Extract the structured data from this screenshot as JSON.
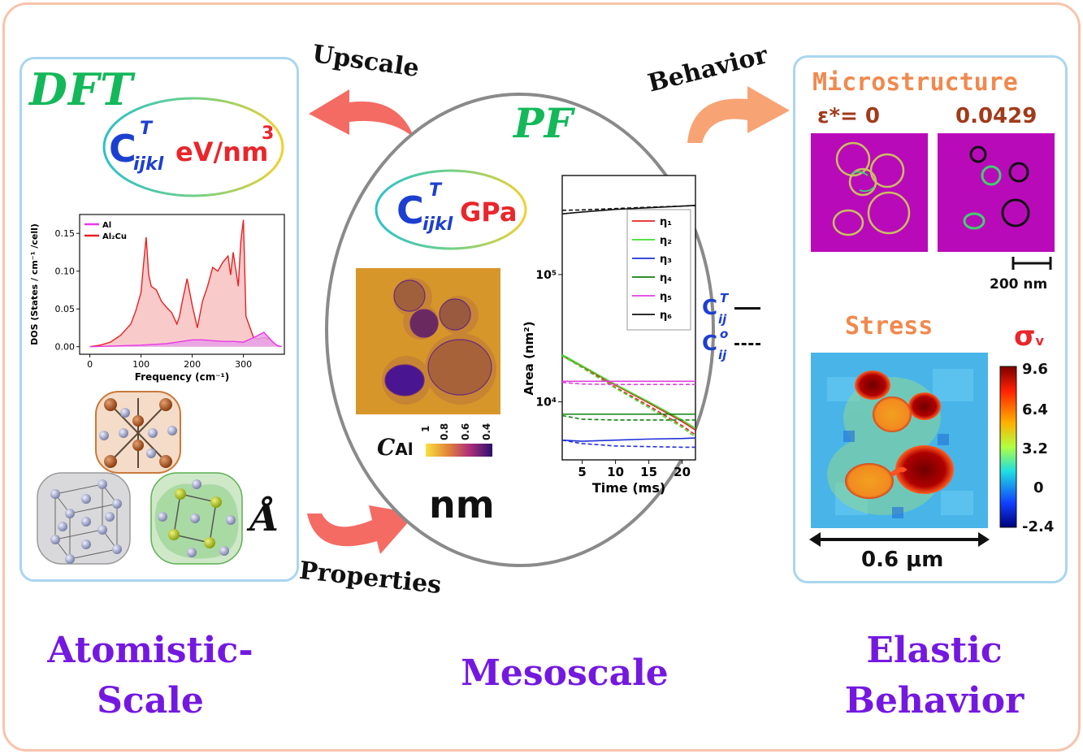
{
  "left_panel": {
    "title": "DFT",
    "tensor_symbol": "C",
    "tensor_sup": "T",
    "tensor_sub": "ijkl",
    "unit": "eV/nm",
    "unit_exp": "3",
    "angstrom": "Å",
    "dos_legend": [
      "Al",
      "Al₂Cu"
    ]
  },
  "center": {
    "title": "PF",
    "tensor_symbol": "C",
    "tensor_sup": "T",
    "tensor_sub": "ijkl",
    "unit": "GPa",
    "conc_label": "C",
    "conc_sub": "Al",
    "colorbar_ticks": [
      "1",
      "0.8",
      "0.6",
      "0.4"
    ],
    "length_unit": "nm",
    "side_legend": [
      {
        "sym": "C",
        "sup": "T",
        "sub": "ij",
        "style": "solid"
      },
      {
        "sym": "C",
        "sup": "o",
        "sub": "ij",
        "style": "dashed"
      }
    ]
  },
  "right_panel": {
    "micro_title": "Microstructure",
    "eps_label": "ε*= 0",
    "eps_value2": "0.0429",
    "scale_bar": "200 nm",
    "stress_title": "Stress",
    "sigma": "σ",
    "sigma_sub": "v",
    "colorbar_ticks": [
      "9.6",
      "6.4",
      "3.2",
      "0",
      "-2.4"
    ],
    "width_label": "0.6 μm"
  },
  "arrows": {
    "upscale": "Upscale",
    "behavior": "Behavior",
    "properties": "Properties"
  },
  "bottom": {
    "left_line1": "Atomistic-",
    "left_line2": "Scale",
    "center": "Mesoscale",
    "right_line1": "Elastic",
    "right_line2": "Behavior"
  },
  "chart_data": [
    {
      "type": "area",
      "xlabel": "Frequency (cm⁻¹)",
      "ylabel": "DOS (States / cm⁻¹ /cell)",
      "xlim": [
        -20,
        380
      ],
      "ylim": [
        -0.01,
        0.175
      ],
      "xticks": [
        0,
        100,
        200,
        300
      ],
      "yticks": [
        0.0,
        0.05,
        0.1,
        0.15
      ],
      "ytick_labels": [
        "0.00",
        "0.05",
        "0.10",
        "0.15"
      ],
      "legend": "top-left",
      "series": [
        {
          "name": "Al",
          "color": "#e838e8",
          "x": [
            0,
            50,
            100,
            150,
            180,
            200,
            220,
            240,
            260,
            280,
            300,
            320,
            340,
            355,
            365,
            375
          ],
          "y": [
            0,
            0.001,
            0.002,
            0.004,
            0.007,
            0.009,
            0.009,
            0.008,
            0.007,
            0.007,
            0.006,
            0.012,
            0.019,
            0.008,
            0.002,
            0
          ]
        },
        {
          "name": "Al₂Cu",
          "color": "#e82020",
          "x": [
            0,
            20,
            40,
            60,
            80,
            90,
            100,
            105,
            110,
            115,
            120,
            130,
            140,
            150,
            160,
            170,
            175,
            180,
            190,
            200,
            210,
            220,
            230,
            240,
            250,
            260,
            270,
            275,
            280,
            290,
            295,
            300,
            305,
            320,
            330,
            340,
            350,
            360,
            370
          ],
          "y": [
            0,
            0.002,
            0.006,
            0.015,
            0.03,
            0.048,
            0.072,
            0.11,
            0.145,
            0.095,
            0.08,
            0.075,
            0.06,
            0.052,
            0.045,
            0.03,
            0.04,
            0.058,
            0.09,
            0.055,
            0.025,
            0.06,
            0.08,
            0.105,
            0.1,
            0.112,
            0.12,
            0.095,
            0.125,
            0.08,
            0.14,
            0.168,
            0.04,
            0.012,
            0.01,
            0.012,
            0.01,
            0.004,
            0
          ]
        }
      ]
    },
    {
      "type": "line",
      "xlabel": "Time (ms)",
      "ylabel": "Area (nm²)",
      "yscale": "log",
      "xlim": [
        2,
        22
      ],
      "ylim": [
        3500,
        600000
      ],
      "xticks": [
        5,
        10,
        15,
        20
      ],
      "yticks": [
        10000,
        100000
      ],
      "legend": "top-right",
      "x": [
        2,
        5,
        10,
        15,
        20,
        22
      ],
      "series": [
        {
          "name": "η₁",
          "color": "#e82020",
          "solid": [
            23000,
            19000,
            13500,
            9800,
            7000,
            6000
          ],
          "dashed": [
            23000,
            18800,
            13000,
            9300,
            6500,
            5500
          ]
        },
        {
          "name": "η₂",
          "color": "#40dd30",
          "solid": [
            23500,
            19200,
            13700,
            10000,
            7200,
            6200
          ],
          "dashed": [
            23000,
            18500,
            12800,
            9000,
            6300,
            5300
          ]
        },
        {
          "name": "η₃",
          "color": "#2030d8",
          "solid": [
            5000,
            4900,
            5000,
            5100,
            5150,
            5200
          ],
          "dashed": [
            5000,
            4700,
            4500,
            4450,
            4400,
            4400
          ]
        },
        {
          "name": "η₄",
          "color": "#108010",
          "solid": [
            8000,
            8000,
            8000,
            8000,
            8000,
            8000
          ],
          "dashed": [
            7800,
            7300,
            7200,
            7200,
            7200,
            7200
          ]
        },
        {
          "name": "η₅",
          "color": "#e040e0",
          "solid": [
            14500,
            14500,
            14500,
            14500,
            14500,
            14500
          ],
          "dashed": [
            14200,
            13800,
            13700,
            13700,
            13700,
            13700
          ]
        },
        {
          "name": "η₆",
          "color": "#101010",
          "solid": [
            300000,
            310000,
            325000,
            335000,
            345000,
            350000
          ],
          "dashed": [
            320000,
            322000,
            330000,
            338000,
            345000,
            348000
          ]
        }
      ]
    }
  ]
}
